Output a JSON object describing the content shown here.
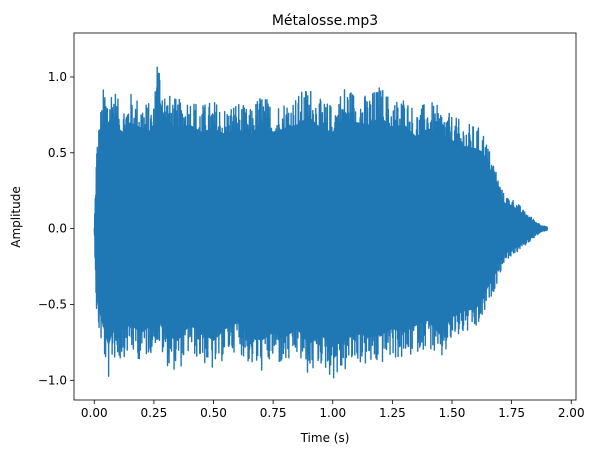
{
  "chart_data": {
    "type": "line",
    "title": "Métalosse.mp3",
    "xlabel": "Time (s)",
    "ylabel": "Amplitude",
    "xlim": [
      -0.085,
      2.02
    ],
    "ylim": [
      -1.13,
      1.29
    ],
    "xticks": [
      0.0,
      0.25,
      0.5,
      0.75,
      1.0,
      1.25,
      1.5,
      1.75,
      2.0
    ],
    "xtick_labels": [
      "0.00",
      "0.25",
      "0.50",
      "0.75",
      "1.00",
      "1.25",
      "1.50",
      "1.75",
      "2.00"
    ],
    "yticks": [
      -1.0,
      -0.5,
      0.0,
      0.5,
      1.0
    ],
    "ytick_labels": [
      "−1.0",
      "−0.5",
      "0.0",
      "0.5",
      "1.0"
    ],
    "grid": false,
    "series": [
      {
        "color": "#1f77b4",
        "description": "audio waveform envelope (approximate peak/trough per time)",
        "x": [
          0.0,
          0.01,
          0.02,
          0.04,
          0.06,
          0.08,
          0.1,
          0.12,
          0.15,
          0.2,
          0.25,
          0.26,
          0.3,
          0.35,
          0.4,
          0.45,
          0.5,
          0.55,
          0.6,
          0.65,
          0.7,
          0.75,
          0.8,
          0.85,
          0.9,
          0.95,
          1.0,
          1.05,
          1.1,
          1.15,
          1.2,
          1.25,
          1.3,
          1.35,
          1.4,
          1.45,
          1.5,
          1.55,
          1.6,
          1.63,
          1.65,
          1.68,
          1.7,
          1.72,
          1.75,
          1.78,
          1.8,
          1.83,
          1.85,
          1.88,
          1.9
        ],
        "max": [
          0.0,
          0.55,
          0.7,
          0.95,
          0.9,
          0.98,
          0.85,
          0.82,
          0.9,
          0.85,
          0.82,
          1.2,
          0.9,
          0.85,
          0.88,
          0.82,
          0.85,
          0.8,
          0.85,
          0.78,
          0.9,
          0.82,
          0.85,
          0.88,
          0.95,
          0.85,
          0.82,
          0.95,
          0.9,
          0.88,
          0.95,
          0.85,
          0.88,
          0.78,
          0.85,
          0.8,
          0.75,
          0.7,
          0.68,
          0.65,
          0.55,
          0.42,
          0.3,
          0.22,
          0.2,
          0.16,
          0.12,
          0.08,
          0.05,
          0.02,
          0.01
        ],
        "min": [
          0.0,
          -0.6,
          -0.7,
          -0.85,
          -1.0,
          -0.85,
          -0.9,
          -0.85,
          -0.82,
          -0.88,
          -0.8,
          -0.75,
          -0.9,
          -0.95,
          -0.82,
          -0.88,
          -0.95,
          -0.85,
          -0.8,
          -0.9,
          -0.95,
          -0.88,
          -0.92,
          -0.85,
          -0.98,
          -0.9,
          -1.0,
          -0.95,
          -0.88,
          -0.92,
          -0.9,
          -0.85,
          -0.88,
          -0.82,
          -0.78,
          -0.9,
          -0.75,
          -0.7,
          -0.68,
          -0.6,
          -0.5,
          -0.4,
          -0.3,
          -0.22,
          -0.18,
          -0.15,
          -0.12,
          -0.08,
          -0.05,
          -0.02,
          -0.01
        ]
      }
    ]
  }
}
